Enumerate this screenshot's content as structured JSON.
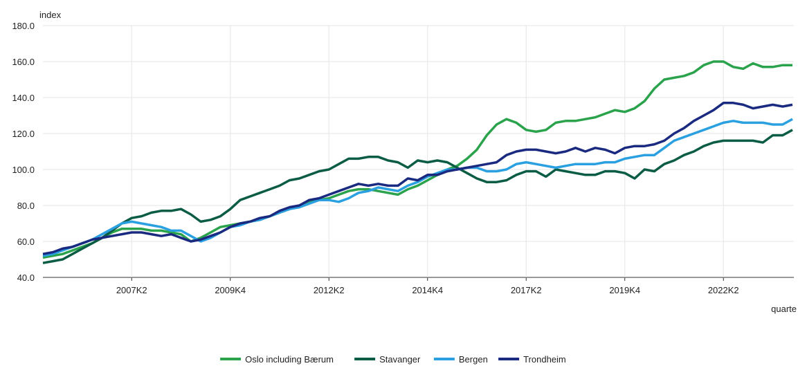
{
  "chart_data": {
    "type": "line",
    "ylabel": "index",
    "xlabel": "quarte",
    "categories": [
      null,
      null,
      null,
      null,
      null,
      null,
      null,
      null,
      null,
      "2007K2",
      null,
      null,
      null,
      null,
      null,
      null,
      null,
      null,
      null,
      "2009K4",
      null,
      null,
      null,
      null,
      null,
      null,
      null,
      null,
      null,
      "2012K2",
      null,
      null,
      null,
      null,
      null,
      null,
      null,
      null,
      null,
      "2014K4",
      null,
      null,
      null,
      null,
      null,
      null,
      null,
      null,
      null,
      "2017K2",
      null,
      null,
      null,
      null,
      null,
      null,
      null,
      null,
      null,
      "2019K4",
      null,
      null,
      null,
      null,
      null,
      null,
      null,
      null,
      null,
      "2022K2",
      null,
      null,
      null,
      null,
      null,
      null,
      null
    ],
    "ylim": [
      40,
      180
    ],
    "yticks": [
      {
        "value": 40,
        "label": "40.0"
      },
      {
        "value": 60,
        "label": "60.0"
      },
      {
        "value": 80,
        "label": "80.0"
      },
      {
        "value": 100,
        "label": "100.0"
      },
      {
        "value": 120,
        "label": "120.0"
      },
      {
        "value": 140,
        "label": "140.0"
      },
      {
        "value": 160,
        "label": "160.0"
      },
      {
        "value": 180,
        "label": "180.0"
      }
    ],
    "grid": true,
    "legend": "bottom",
    "series": [
      {
        "name": "Oslo including Bærum",
        "color": "#2ba24c",
        "values": [
          51,
          52,
          53,
          55,
          57,
          59,
          62,
          65,
          67,
          67,
          67,
          66,
          66,
          65,
          64,
          60,
          62,
          65,
          68,
          69,
          70,
          71,
          72,
          74,
          76,
          78,
          80,
          82,
          83,
          84,
          86,
          88,
          89,
          89,
          88,
          87,
          86,
          89,
          91,
          94,
          97,
          100,
          102,
          106,
          111,
          119,
          125,
          128,
          126,
          122,
          121,
          122,
          126,
          127,
          127,
          128,
          129,
          131,
          133,
          132,
          134,
          138,
          145,
          150,
          151,
          152,
          154,
          158,
          160,
          160,
          157,
          156,
          159,
          157,
          157,
          158,
          158
        ]
      },
      {
        "name": "Stavanger",
        "color": "#0b5c45",
        "values": [
          48,
          49,
          50,
          53,
          56,
          59,
          62,
          66,
          70,
          73,
          74,
          76,
          77,
          77,
          78,
          75,
          71,
          72,
          74,
          78,
          83,
          85,
          87,
          89,
          91,
          94,
          95,
          97,
          99,
          100,
          103,
          106,
          106,
          107,
          107,
          105,
          104,
          101,
          105,
          104,
          105,
          104,
          101,
          98,
          95,
          93,
          93,
          94,
          97,
          99,
          99,
          96,
          100,
          99,
          98,
          97,
          97,
          99,
          99,
          98,
          95,
          100,
          99,
          103,
          105,
          108,
          110,
          113,
          115,
          116,
          116,
          116,
          116,
          115,
          119,
          119,
          122
        ]
      },
      {
        "name": "Bergen",
        "color": "#2aa0e0",
        "values": [
          52,
          53,
          55,
          57,
          59,
          61,
          64,
          67,
          70,
          71,
          70,
          69,
          68,
          66,
          66,
          63,
          60,
          62,
          65,
          68,
          69,
          71,
          72,
          74,
          76,
          78,
          79,
          81,
          83,
          83,
          82,
          84,
          87,
          88,
          90,
          89,
          88,
          91,
          93,
          96,
          98,
          100,
          100,
          101,
          101,
          99,
          99,
          100,
          103,
          104,
          103,
          102,
          101,
          102,
          103,
          103,
          103,
          104,
          104,
          106,
          107,
          108,
          108,
          112,
          116,
          118,
          120,
          122,
          124,
          126,
          127,
          126,
          126,
          126,
          125,
          125,
          128
        ]
      },
      {
        "name": "Trondheim",
        "color": "#1a2a80",
        "values": [
          53,
          54,
          56,
          57,
          59,
          61,
          62,
          63,
          64,
          65,
          65,
          64,
          63,
          64,
          62,
          60,
          61,
          63,
          65,
          68,
          70,
          71,
          73,
          74,
          77,
          79,
          80,
          83,
          84,
          86,
          88,
          90,
          92,
          91,
          92,
          91,
          91,
          95,
          94,
          97,
          97,
          99,
          100,
          101,
          102,
          103,
          104,
          108,
          110,
          111,
          111,
          110,
          109,
          110,
          112,
          110,
          112,
          111,
          109,
          112,
          113,
          113,
          114,
          116,
          120,
          123,
          127,
          130,
          133,
          137,
          137,
          136,
          134,
          135,
          136,
          135,
          136
        ]
      }
    ]
  }
}
